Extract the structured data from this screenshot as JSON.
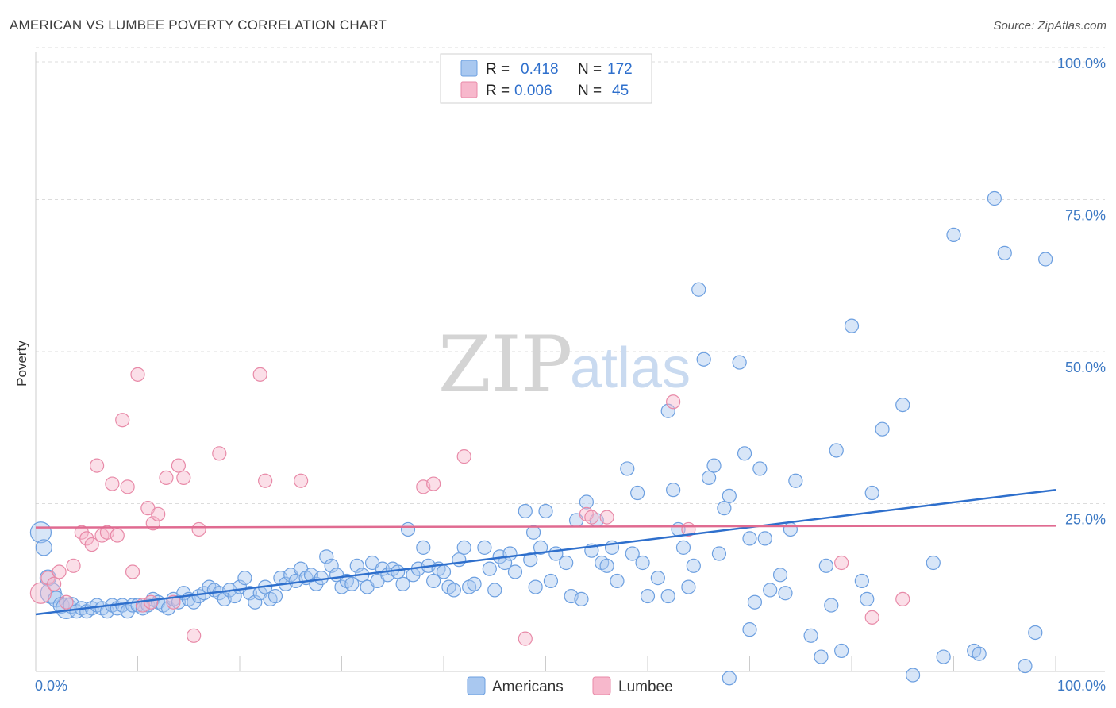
{
  "header": {
    "title": "AMERICAN VS LUMBEE POVERTY CORRELATION CHART",
    "source": "Source: ZipAtlas.com"
  },
  "watermark": {
    "zip": "ZIP",
    "atlas": "atlas"
  },
  "legend_box": {
    "rows": [
      {
        "r_label": "R =",
        "r_value": "0.418",
        "n_label": "N =",
        "n_value": "172",
        "color": "#a9c8f0"
      },
      {
        "r_label": "R =",
        "r_value": "0.006",
        "n_label": "N =",
        "n_value": "45",
        "color": "#f7b8cc"
      }
    ]
  },
  "chart_data": {
    "type": "scatter",
    "title": "AMERICAN VS LUMBEE POVERTY CORRELATION CHART",
    "xlabel": "",
    "ylabel": "Poverty",
    "xlim": [
      0,
      100
    ],
    "ylim": [
      0,
      100
    ],
    "x_tick_labels": [
      "0.0%",
      "100.0%"
    ],
    "y_tick_labels": [
      "25.0%",
      "50.0%",
      "75.0%",
      "100.0%"
    ],
    "y_ticks": [
      25,
      50,
      75,
      100
    ],
    "grid": "horizontal dashed",
    "legend_placement": "bottom-center",
    "series": [
      {
        "name": "Americans",
        "color": "#6c9fe0",
        "fill": "#a9c8f0",
        "trend": {
          "x0": 0,
          "y0": 11.5,
          "x1": 100,
          "y1": 32
        },
        "points": [
          [
            0.5,
            25
          ],
          [
            0.8,
            22.5
          ],
          [
            1.2,
            17.5
          ],
          [
            1.5,
            15
          ],
          [
            2,
            14
          ],
          [
            2.5,
            13
          ],
          [
            3,
            12.5
          ],
          [
            3.5,
            13
          ],
          [
            4,
            12
          ],
          [
            4.5,
            12.5
          ],
          [
            5,
            12
          ],
          [
            5.5,
            12.5
          ],
          [
            6,
            13
          ],
          [
            6.5,
            12.5
          ],
          [
            7,
            12
          ],
          [
            7.5,
            13
          ],
          [
            8,
            12.5
          ],
          [
            8.5,
            13
          ],
          [
            9,
            12
          ],
          [
            9.5,
            13
          ],
          [
            10,
            13
          ],
          [
            10.5,
            12.5
          ],
          [
            11,
            13
          ],
          [
            11.5,
            14
          ],
          [
            12,
            13.5
          ],
          [
            12.5,
            13
          ],
          [
            13,
            12.5
          ],
          [
            13.5,
            14
          ],
          [
            14,
            13.5
          ],
          [
            14.5,
            15
          ],
          [
            15,
            14
          ],
          [
            15.5,
            13.5
          ],
          [
            16,
            14.5
          ],
          [
            16.5,
            15
          ],
          [
            17,
            16
          ],
          [
            17.5,
            15.5
          ],
          [
            18,
            15
          ],
          [
            18.5,
            14
          ],
          [
            19,
            15.5
          ],
          [
            19.5,
            14.5
          ],
          [
            20,
            16
          ],
          [
            20.5,
            17.5
          ],
          [
            21,
            15
          ],
          [
            21.5,
            13.5
          ],
          [
            22,
            15
          ],
          [
            22.5,
            16
          ],
          [
            23,
            14
          ],
          [
            23.5,
            14.5
          ],
          [
            24,
            17.5
          ],
          [
            24.5,
            16.5
          ],
          [
            25,
            18
          ],
          [
            25.5,
            17
          ],
          [
            26,
            19
          ],
          [
            26.5,
            17.5
          ],
          [
            27,
            18
          ],
          [
            27.5,
            16.5
          ],
          [
            28,
            17.5
          ],
          [
            28.5,
            21
          ],
          [
            29,
            19.5
          ],
          [
            29.5,
            18
          ],
          [
            30,
            16
          ],
          [
            30.5,
            17
          ],
          [
            31,
            16.5
          ],
          [
            31.5,
            19.5
          ],
          [
            32,
            18
          ],
          [
            32.5,
            16
          ],
          [
            33,
            20
          ],
          [
            33.5,
            17
          ],
          [
            34,
            19
          ],
          [
            34.5,
            18
          ],
          [
            35,
            19
          ],
          [
            35.5,
            18.5
          ],
          [
            36,
            16.5
          ],
          [
            36.5,
            25.5
          ],
          [
            37,
            18
          ],
          [
            37.5,
            19
          ],
          [
            38,
            22.5
          ],
          [
            38.5,
            19.5
          ],
          [
            39,
            17
          ],
          [
            39.5,
            19
          ],
          [
            40,
            18.5
          ],
          [
            40.5,
            16
          ],
          [
            41,
            15.5
          ],
          [
            41.5,
            20.5
          ],
          [
            42,
            22.5
          ],
          [
            42.5,
            16
          ],
          [
            43,
            16.5
          ],
          [
            44,
            22.5
          ],
          [
            44.5,
            19
          ],
          [
            45,
            15.5
          ],
          [
            45.5,
            21
          ],
          [
            46,
            20
          ],
          [
            46.5,
            21.5
          ],
          [
            47,
            18.5
          ],
          [
            48,
            28.5
          ],
          [
            48.5,
            20.5
          ],
          [
            48.8,
            25
          ],
          [
            49,
            16
          ],
          [
            49.5,
            22.5
          ],
          [
            50,
            28.5
          ],
          [
            50.5,
            17
          ],
          [
            51,
            21.5
          ],
          [
            52,
            20
          ],
          [
            52.5,
            14.5
          ],
          [
            53,
            27
          ],
          [
            53.5,
            14
          ],
          [
            54,
            30
          ],
          [
            54.5,
            22
          ],
          [
            55,
            27
          ],
          [
            55.5,
            20
          ],
          [
            56,
            19.5
          ],
          [
            56.5,
            22.5
          ],
          [
            57,
            17
          ],
          [
            58,
            35.5
          ],
          [
            58.5,
            21.5
          ],
          [
            59,
            31.5
          ],
          [
            59.5,
            20
          ],
          [
            60,
            14.5
          ],
          [
            61,
            17.5
          ],
          [
            62,
            45
          ],
          [
            62.5,
            32
          ],
          [
            63,
            25.5
          ],
          [
            63.5,
            22.5
          ],
          [
            64,
            16
          ],
          [
            64.5,
            19.5
          ],
          [
            65,
            65
          ],
          [
            65.5,
            53.5
          ],
          [
            66,
            34
          ],
          [
            66.5,
            36
          ],
          [
            67,
            21.5
          ],
          [
            67.5,
            29
          ],
          [
            68,
            31
          ],
          [
            69,
            53
          ],
          [
            69.5,
            38
          ],
          [
            70,
            24
          ],
          [
            70.5,
            13.5
          ],
          [
            71,
            35.5
          ],
          [
            71.5,
            24
          ],
          [
            72,
            15.5
          ],
          [
            73,
            18
          ],
          [
            73.5,
            15
          ],
          [
            74,
            25.5
          ],
          [
            74.5,
            33.5
          ],
          [
            76,
            8
          ],
          [
            77,
            4.5
          ],
          [
            77.5,
            19.5
          ],
          [
            78,
            13
          ],
          [
            78.5,
            38.5
          ],
          [
            79,
            5.5
          ],
          [
            80,
            59
          ],
          [
            81,
            17
          ],
          [
            81.5,
            14
          ],
          [
            82,
            31.5
          ],
          [
            83,
            42
          ],
          [
            85,
            46
          ],
          [
            86,
            1.5
          ],
          [
            88,
            20
          ],
          [
            89,
            4.5
          ],
          [
            90,
            74
          ],
          [
            92,
            5.5
          ],
          [
            92.5,
            5
          ],
          [
            94,
            80
          ],
          [
            95,
            71
          ],
          [
            97,
            3
          ],
          [
            98,
            8.5
          ],
          [
            99,
            70
          ],
          [
            62,
            14.5
          ],
          [
            70,
            9
          ],
          [
            68,
            1
          ]
        ]
      },
      {
        "name": "Lumbee",
        "color": "#e88aa8",
        "fill": "#f7b8cc",
        "trend": {
          "x0": 0,
          "y0": 25.8,
          "x1": 100,
          "y1": 26.1
        },
        "points": [
          [
            0.5,
            15
          ],
          [
            1.2,
            17.5
          ],
          [
            1.8,
            16.5
          ],
          [
            2.3,
            18.5
          ],
          [
            3,
            13.5
          ],
          [
            3.7,
            19.5
          ],
          [
            4.5,
            25
          ],
          [
            5,
            24
          ],
          [
            5.5,
            23
          ],
          [
            6,
            36
          ],
          [
            6.5,
            24.5
          ],
          [
            7,
            25
          ],
          [
            7.5,
            33
          ],
          [
            8,
            24.5
          ],
          [
            8.5,
            43.5
          ],
          [
            9,
            32.5
          ],
          [
            9.5,
            18.5
          ],
          [
            10,
            51
          ],
          [
            10.5,
            13
          ],
          [
            11,
            29
          ],
          [
            11.3,
            13.5
          ],
          [
            11.5,
            26.5
          ],
          [
            12,
            28
          ],
          [
            12.8,
            34
          ],
          [
            13.5,
            13.5
          ],
          [
            14,
            36
          ],
          [
            14.5,
            34
          ],
          [
            15.5,
            8
          ],
          [
            16,
            25.5
          ],
          [
            18,
            38
          ],
          [
            22,
            51
          ],
          [
            22.5,
            33.5
          ],
          [
            26,
            33.5
          ],
          [
            38,
            32.5
          ],
          [
            39,
            33
          ],
          [
            42,
            37.5
          ],
          [
            48,
            7.5
          ],
          [
            54,
            28
          ],
          [
            54.5,
            27.5
          ],
          [
            56,
            27.5
          ],
          [
            62.5,
            46.5
          ],
          [
            64,
            25.5
          ],
          [
            79,
            20
          ],
          [
            82,
            11
          ],
          [
            85,
            14
          ]
        ]
      }
    ]
  },
  "bottom_legend": {
    "items": [
      {
        "label": "Americans",
        "color": "#a9c8f0"
      },
      {
        "label": "Lumbee",
        "color": "#f7b8cc"
      }
    ]
  }
}
